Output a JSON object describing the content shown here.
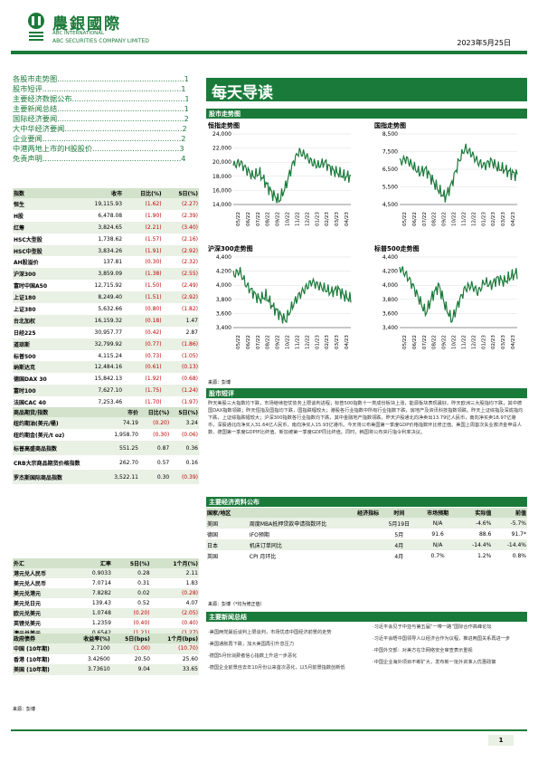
{
  "header": {
    "company_cn": "農銀國際",
    "company_en1": "ABC INTERNATIONAL",
    "company_en2": "ABC SECURITIES COMPANY LIMITED",
    "date": "2023年5月25日",
    "logo_text": "中國農業銀行"
  },
  "toc": [
    "各股市走势图......................................................1",
    "股市短评...........................................................1",
    "主要经济数据公布................................................1",
    "主要新闻总结......................................................1",
    "国际经济要闻......................................................2",
    "大中华经济要闻..................................................2",
    "企业要闻...........................................................2",
    "中港两地上市的H股股价.....................................3",
    "免责声明...........................................................4"
  ],
  "title": "每天导读",
  "section_charts": "股市走势图",
  "charts": [
    {
      "title": "恒指走势图",
      "yticks": [
        "24,000",
        "22,000",
        "20,000",
        "18,000",
        "16,000",
        "14,000"
      ]
    },
    {
      "title": "国指走势图",
      "yticks": [
        "8,500",
        "7,500",
        "6,500",
        "5,500",
        "4,500"
      ]
    },
    {
      "title": "沪深300走势图",
      "yticks": [
        "4,400",
        "4,200",
        "4,000",
        "3,800",
        "3,600",
        "3,400"
      ]
    },
    {
      "title": "标普500走势图",
      "yticks": [
        "4,400",
        "4,200",
        "4,000",
        "3,800",
        "3,600",
        "3,400"
      ]
    }
  ],
  "xticks": [
    "05/22",
    "06/22",
    "07/22",
    "08/22",
    "09/22",
    "10/22",
    "11/22",
    "12/22",
    "01/23",
    "02/23",
    "03/23",
    "04/23"
  ],
  "chart_source": "来源：彭博",
  "index_table": {
    "headers": [
      "指数",
      "收市",
      "日比(%)",
      "5日(%)"
    ],
    "rows": [
      [
        "恒生",
        "19,115.93",
        "(1.62)",
        "(2.27)"
      ],
      [
        "H股",
        "6,478.08",
        "(1.90)",
        "(2.39)"
      ],
      [
        "红筹",
        "3,824.65",
        "(2.21)",
        "(3.40)"
      ],
      [
        "HSC大型股",
        "1,738.62",
        "(1.57)",
        "(2.16)"
      ],
      [
        "HSC中型股",
        "3,834.26",
        "(1.91)",
        "(2.92)"
      ],
      [
        "AH股溢价",
        "137.81",
        "(0.30)",
        "(2.32)"
      ],
      [
        "沪深300",
        "3,859.09",
        "(1.38)",
        "(2.55)"
      ],
      [
        "富时中国A50",
        "12,715.92",
        "(1.50)",
        "(2.49)"
      ],
      [
        "上证180",
        "8,249.40",
        "(1.51)",
        "(2.92)"
      ],
      [
        "上证380",
        "5,632.66",
        "(0.80)",
        "(1.82)"
      ],
      [
        "台北加权",
        "16,159.32",
        "(0.18)",
        "1.47"
      ],
      [
        "日经225",
        "30,957.77",
        "(0.42)",
        "2.87"
      ],
      [
        "道琼斯",
        "32,799.92",
        "(0.77)",
        "(1.86)"
      ],
      [
        "标普500",
        "4,115.24",
        "(0.73)",
        "(1.05)"
      ],
      [
        "纳斯达克",
        "12,484.16",
        "(0.61)",
        "(0.13)"
      ],
      [
        "德国DAX 30",
        "15,842.13",
        "(1.92)",
        "(0.68)"
      ],
      [
        "富时100",
        "7,627.10",
        "(1.75)",
        "(1.24)"
      ],
      [
        "法国CAC 40",
        "7,253.46",
        "(1.70)",
        "(1.97)"
      ]
    ]
  },
  "commodity_table": {
    "headers": [
      "商品期货/指数",
      "市价",
      "日比(%)",
      "5日(%)"
    ],
    "rows": [
      [
        "纽约期油(美元/桶)",
        "74.19",
        "(0.20)",
        "3.24"
      ],
      [
        "纽约期金(美元/t oz)",
        "1,958.70",
        "(0.30)",
        "(0.06)"
      ],
      [
        "标普高盛商品指数",
        "551.25",
        "0.87",
        "0.36"
      ],
      [
        "CRB大宗商品期货价格指数",
        "262.70",
        "0.57",
        "0.16"
      ],
      [
        "罗杰斯国际商品指数",
        "3,522.11",
        "0.30",
        "(0.39)"
      ]
    ]
  },
  "fx_table": {
    "headers": [
      "外汇",
      "汇率",
      "5日(%)",
      "1个月(%)"
    ],
    "rows": [
      [
        "港元兑人民币",
        "0.9033",
        "0.28",
        "2.11"
      ],
      [
        "美元兑人民币",
        "7.0714",
        "0.31",
        "1.83"
      ],
      [
        "美元兑港元",
        "7.8282",
        "0.02",
        "(0.28)"
      ],
      [
        "美元兑日元",
        "139.43",
        "0.52",
        "4.07"
      ],
      [
        "欧元兑美元",
        "1.0748",
        "(0.20)",
        "(2.05)"
      ],
      [
        "英镑兑美元",
        "1.2359",
        "(0.40)",
        "(0.40)"
      ],
      [
        "澳元兑美元",
        "0.6542",
        "(1.21)",
        "(1.27)"
      ]
    ]
  },
  "bond_table": {
    "headers": [
      "政府债券",
      "收益率(%)",
      "5日(bps)",
      "1个月(bps)"
    ],
    "rows": [
      [
        "中国 (10年期)",
        "2.7100",
        "(1.00)",
        "(10.70)"
      ],
      [
        "香港 (10年期)",
        "3.42600",
        "20.50",
        "25.60"
      ],
      [
        "美国 (10年期)",
        "3.73610",
        "9.04",
        "33.65"
      ]
    ]
  },
  "left_source": "来源：彭博",
  "commentary_title": "股市短评",
  "commentary": "昨天美股三大指数均下跌，市场继续担忧债务上限谈判进程；标普500指数十一类成份板块上涨，能源板块表现最好。昨天欧洲三大股指均下跌，其中德国DAX指数领跌；昨天恒指及国指均下跌，国指跌幅较大；港股各行业指数中所有行业指数下跌，房地产及资讯科技指数领跌。昨天上证综指及深成指均下跌，上证综指跌幅较大；沪深300指数各行业指数均下跌，其中金融地产指数领跌。昨天沪股通北向净卖出13.79亿人民币，南向净买卖18.97亿港币，深股通北向净买入31.64亿人民币，南向净买入15.93亿港币。今天将公布美国第一季度GDP价格指数环比修正值、美国上周首次失业救济金申请人数、德国第一季度GDP环比终值、新加坡第一季度GDP同比终值。同时，韩国将公布央行指令利率决议。",
  "econ_title": "主要经济资料公布",
  "econ_table": {
    "headers": [
      "国家/地区",
      "经济指标",
      "时间",
      "市场预期",
      "实际值",
      "前值"
    ],
    "rows": [
      [
        "美国",
        "周度MBA抵押贷款申请指数环比",
        "5月19日",
        "N/A",
        "-4.6%",
        "-5.7%"
      ],
      [
        "德国",
        "IFO预期",
        "5月",
        "91.6",
        "88.6",
        "91.7*"
      ],
      [
        "日本",
        "机床订单同比",
        "4月",
        "N/A",
        "-14.4%",
        "-14.4%"
      ],
      [
        "英国",
        "CPI 月环比",
        "4月",
        "0.7%",
        "1.2%",
        "0.8%"
      ]
    ]
  },
  "econ_source": "来源：彭博（*均为修正值）",
  "news_title": "主要新闻总结",
  "news_left": [
    "·美国两党最后谈判上限谈判，市场忧虑中国经济前景的走势",
    "·美国通胀再下跌，加大美国再引升息压力",
    "·德国5月份消费者信心指数上升进一步恶化",
    "·德国企业前景自去年10月份以来首次恶化，以5月前景指数创新低"
  ],
  "news_right": [
    "·习近平会见于中亚与第五届“一带一路”国际合作高峰论坛",
    "·习近平会晤中国领导人以经济合作为议程，推进两国关系再进一步",
    "·中国外交部：对美方在华网络安全审查表示重视",
    "·中国企业海外项目不断扩大，发布新一批外资准入优惠政策"
  ],
  "page_number": "1"
}
